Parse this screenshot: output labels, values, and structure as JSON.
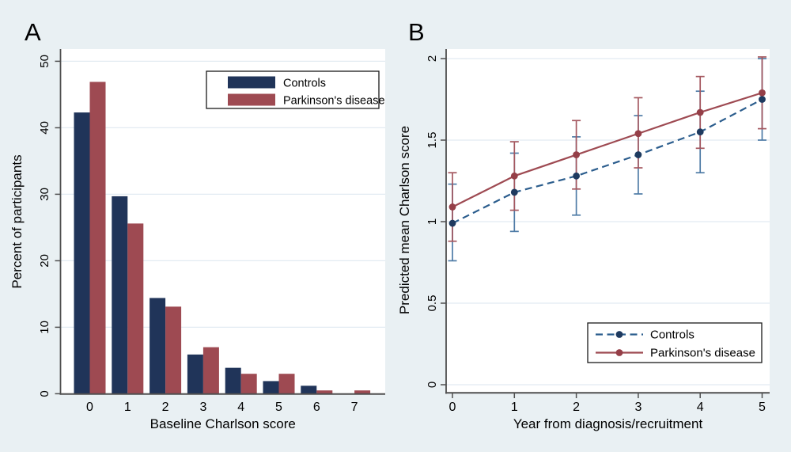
{
  "figure": {
    "panels": [
      {
        "label": "A"
      },
      {
        "label": "B"
      }
    ]
  },
  "colors": {
    "background": "#e9f0f3",
    "plot_bg": "#ffffff",
    "grid": "#e2ebf2",
    "axis": "#4f4f4f",
    "text": "#000000",
    "legend_border": "#1a1a1a",
    "controls_bar": "#203459",
    "pd_bar": "#9e4a52",
    "controls_line": "#2b5d8d",
    "controls_marker": "#1e3a5f",
    "controls_ci": "#4e7ba6",
    "pd_line": "#9e4a52",
    "pd_marker": "#953f48",
    "pd_ci": "#a4575f"
  },
  "chart_data": [
    {
      "type": "bar",
      "panel": "A",
      "xlabel": "Baseline Charlson score",
      "ylabel": "Percent of participants",
      "categories": [
        "0",
        "1",
        "2",
        "3",
        "4",
        "5",
        "6",
        "7"
      ],
      "yticks": [
        0,
        10,
        20,
        30,
        40,
        50
      ],
      "ytick_labels": [
        "0",
        "10",
        "20",
        "30",
        "40",
        "50"
      ],
      "ylim": [
        0,
        51.8
      ],
      "grid": true,
      "legend_position": "upper-right",
      "series": [
        {
          "name": "Controls",
          "values": [
            42.3,
            29.7,
            14.4,
            5.9,
            3.9,
            1.9,
            1.2,
            0
          ]
        },
        {
          "name": "Parkinson's disease",
          "values": [
            46.9,
            25.6,
            13.1,
            7.0,
            3.0,
            3.0,
            0.5,
            0.5
          ]
        }
      ]
    },
    {
      "type": "line",
      "panel": "B",
      "xlabel": "Year from diagnosis/recruitment",
      "ylabel": "Predicted mean Charlson score",
      "x": [
        0,
        1,
        2,
        3,
        4,
        5
      ],
      "xtick_labels": [
        "0",
        "1",
        "2",
        "3",
        "4",
        "5"
      ],
      "yticks": [
        0,
        0.5,
        1,
        1.5,
        2
      ],
      "ytick_labels": [
        "0",
        "0.5",
        "1",
        "1.5",
        "2"
      ],
      "ylim": [
        -0.05,
        2.06
      ],
      "grid": true,
      "error_bars": true,
      "legend_position": "lower-right",
      "series": [
        {
          "name": "Controls",
          "line_style": "dashed",
          "marker": "circle",
          "values": [
            0.99,
            1.18,
            1.28,
            1.41,
            1.55,
            1.75
          ],
          "ci_low": [
            0.76,
            0.94,
            1.04,
            1.17,
            1.3,
            1.5
          ],
          "ci_high": [
            1.23,
            1.42,
            1.52,
            1.65,
            1.8,
            2.0
          ]
        },
        {
          "name": "Parkinson's disease",
          "line_style": "solid",
          "marker": "circle",
          "values": [
            1.09,
            1.28,
            1.41,
            1.54,
            1.67,
            1.79
          ],
          "ci_low": [
            0.88,
            1.07,
            1.2,
            1.33,
            1.45,
            1.57
          ],
          "ci_high": [
            1.3,
            1.49,
            1.62,
            1.76,
            1.89,
            2.01
          ]
        }
      ]
    }
  ]
}
